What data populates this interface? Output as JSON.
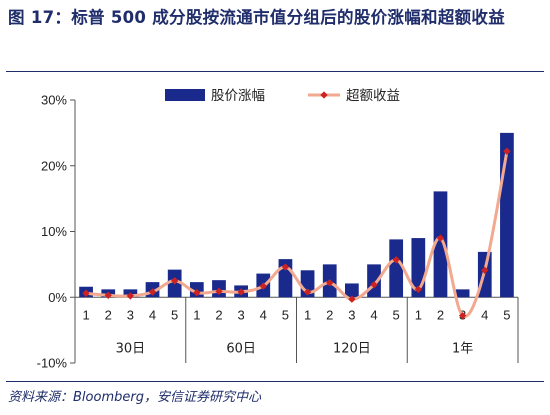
{
  "title": "图 17：标普 500 成分股按流通市值分组后的股价涨幅和超额收益",
  "source": "资料来源：Bloomberg，安信证券研究中心",
  "colors": {
    "bar": "#1a2a8c",
    "line": "#f2a98f",
    "marker": "#cc2222",
    "title": "#1f2d6b"
  },
  "chart_data": {
    "type": "bar",
    "title": "",
    "xlabel": "",
    "ylabel": "",
    "ylim": [
      -0.1,
      0.3
    ],
    "y_ticks": [
      "-10%",
      "0%",
      "10%",
      "20%",
      "30%"
    ],
    "legend_position": "top-center",
    "grid": false,
    "groups": [
      "30日",
      "60日",
      "120日",
      "1年"
    ],
    "categories": [
      "1",
      "2",
      "3",
      "4",
      "5",
      "1",
      "2",
      "3",
      "4",
      "5",
      "1",
      "2",
      "3",
      "4",
      "5",
      "1",
      "2",
      "3",
      "4",
      "5"
    ],
    "series": [
      {
        "name": "股价涨幅",
        "type": "bar",
        "values": [
          0.016,
          0.012,
          0.012,
          0.023,
          0.042,
          0.023,
          0.026,
          0.018,
          0.036,
          0.058,
          0.041,
          0.05,
          0.021,
          0.05,
          0.088,
          0.09,
          0.161,
          0.012,
          0.069,
          0.25
        ]
      },
      {
        "name": "超额收益",
        "type": "line",
        "values": [
          0.006,
          0.003,
          0.002,
          0.008,
          0.025,
          0.007,
          0.009,
          0.008,
          0.017,
          0.046,
          0.008,
          0.022,
          -0.003,
          0.019,
          0.057,
          0.012,
          0.09,
          -0.028,
          0.041,
          0.222
        ]
      }
    ]
  }
}
